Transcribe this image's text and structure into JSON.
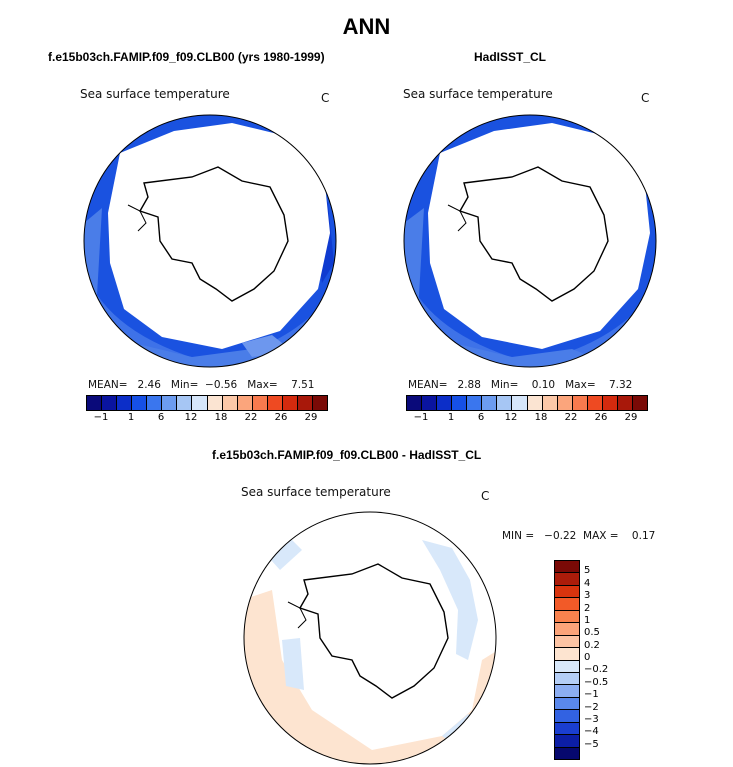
{
  "main_title": "ANN",
  "panels": [
    {
      "title": "f.e15b03ch.FAMIP.f09_f09.CLB00 (yrs 1980-1999)",
      "var_label": "Sea surface temperature",
      "unit": "C",
      "stats": "MEAN=   2.46   Min=  −0.56   Max=    7.51"
    },
    {
      "title": "HadISST_CL",
      "var_label": "Sea surface temperature",
      "unit": "C",
      "stats": "MEAN=   2.88   Min=    0.10   Max=    7.32"
    }
  ],
  "top_colorbar": {
    "ticks": [
      "−1",
      "1",
      "6",
      "12",
      "18",
      "22",
      "26",
      "29"
    ],
    "colors": [
      "#0a0a7a",
      "#0a14a0",
      "#0c2ec8",
      "#1650e6",
      "#3a76ee",
      "#6c9cf0",
      "#a6c6f4",
      "#d6e6fa",
      "#fbe4d2",
      "#fcc8a8",
      "#fba57c",
      "#f87a4e",
      "#ee4a22",
      "#d42a0e",
      "#a8180a",
      "#7a0a06"
    ]
  },
  "diff": {
    "title": "f.e15b03ch.FAMIP.f09_f09.CLB00 - HadISST_CL",
    "var_label": "Sea surface temperature",
    "unit": "C",
    "minmax": "MIN =   −0.22  MAX =    0.17",
    "colorbar_ticks": [
      "5",
      "4",
      "3",
      "2",
      "1",
      "0.5",
      "0.2",
      "0",
      "−0.2",
      "−0.5",
      "−1",
      "−2",
      "−3",
      "−4",
      "−5"
    ],
    "colorbar_colors": [
      "#7a0a06",
      "#ac1c0a",
      "#d8340e",
      "#f25a28",
      "#f9824e",
      "#fca47a",
      "#fdc4a4",
      "#fde4d0",
      "#d8e8fa",
      "#b4cef6",
      "#8caef2",
      "#5a88ec",
      "#3262e2",
      "#1a3ed0",
      "#0c1ea6",
      "#06086e"
    ]
  }
}
